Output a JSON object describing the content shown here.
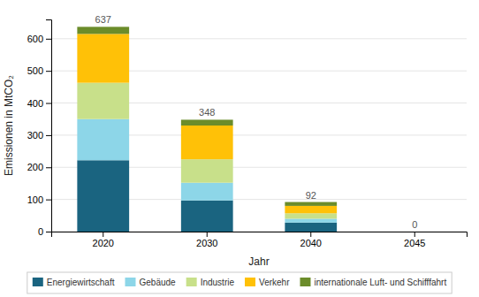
{
  "chart_data": {
    "type": "bar",
    "stacked": true,
    "categories": [
      "2020",
      "2030",
      "2040",
      "2045"
    ],
    "series": [
      {
        "name": "Energiewirtschaft",
        "color": "#1a6480",
        "values": [
          222,
          97,
          28,
          0
        ]
      },
      {
        "name": "Gebäude",
        "color": "#8dd6e8",
        "values": [
          128,
          55,
          12,
          0
        ]
      },
      {
        "name": "Industrie",
        "color": "#c8e08a",
        "values": [
          113,
          73,
          17,
          0
        ]
      },
      {
        "name": "Verkehr",
        "color": "#ffc107",
        "values": [
          152,
          105,
          23,
          0
        ]
      },
      {
        "name": "internationale Luft- und Schifffahrt",
        "color": "#6b8c2a",
        "values": [
          22,
          18,
          12,
          0
        ]
      }
    ],
    "totals": [
      637,
      348,
      92,
      0
    ],
    "xlabel": "Jahr",
    "ylabel": "Emissionen in MtCO₂",
    "ylim": [
      0,
      660
    ],
    "yticks": [
      0,
      100,
      200,
      300,
      400,
      500,
      600
    ],
    "grid": true,
    "legend": "bottom"
  }
}
